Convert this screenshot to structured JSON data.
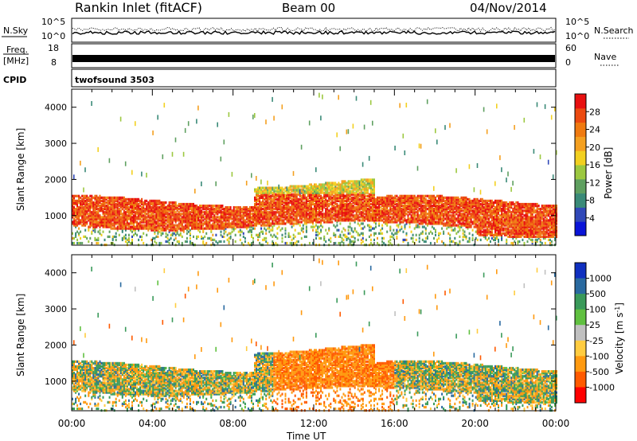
{
  "header": {
    "station": "Rankin Inlet (fitACF)",
    "beam": "Beam 00",
    "date": "04/Nov/2014"
  },
  "panels_top": {
    "nsky_label": "N.Sky",
    "nsky_top_tick": "10^5",
    "nsky_bottom_tick": "10^0",
    "nsearch_label": "N.Search",
    "nsearch_top_tick": "10^5",
    "nsearch_bottom_tick": "10^0",
    "freq_label": "Freq.",
    "freq_unit": "[MHz]",
    "freq_top_tick": "18",
    "freq_bottom_tick": "8",
    "nave_label": "Nave",
    "nave_top_tick": "60",
    "nave_bottom_tick": "0",
    "cpid_label": "CPID",
    "cpid_value": "twofsound 3503"
  },
  "colors": {
    "power_scale": [
      "#0a14d8",
      "#3048b8",
      "#3a8a78",
      "#5fa060",
      "#9cc840",
      "#f2d020",
      "#f4a020",
      "#f07a10",
      "#ec4a10",
      "#e81010"
    ],
    "velocity_scale": [
      "#ff0000",
      "#ff5a00",
      "#ff9a10",
      "#ffcc40",
      "#c0c0c0",
      "#60c040",
      "#3a9a5a",
      "#2a6aa0",
      "#1030c0"
    ]
  },
  "chart_data": [
    {
      "type": "line",
      "title": "N.Sky / N.Search",
      "x_range": [
        "00:00",
        "24:00"
      ],
      "ylabel": "N.Sky",
      "ylabel_right": "N.Search",
      "y_ticks": [
        "10^0",
        "10^5"
      ],
      "log_scale": true
    },
    {
      "type": "line",
      "ylabel": "Freq. [MHz]",
      "ylabel_right": "Nave",
      "y_ticks_left": [
        8,
        18
      ],
      "y_ticks_right": [
        0,
        60
      ],
      "cpid": "twofsound 3503"
    },
    {
      "type": "heatmap",
      "parameter": "Power",
      "colorbar_label": "Power [dB]",
      "colorbar_ticks": [
        "4",
        "8",
        "12",
        "16",
        "20",
        "24",
        "28"
      ],
      "colorbar_range": [
        0,
        32
      ],
      "ylabel": "Slant Range [km]",
      "y_ticks": [
        "1000",
        "2000",
        "3000",
        "4000"
      ],
      "ylim": [
        180,
        4500
      ],
      "x_ticks": [
        "00:00",
        "04:00",
        "08:00",
        "12:00",
        "16:00",
        "20:00",
        "00:00"
      ],
      "main_band_range_km": [
        700,
        1400
      ]
    },
    {
      "type": "heatmap",
      "parameter": "Velocity",
      "colorbar_label": "Velocity [m s-1]",
      "colorbar_label_base": "Velocity [m s",
      "colorbar_label_exp": "-1",
      "colorbar_label_end": "]",
      "colorbar_ticks": [
        "1000",
        "500",
        "100",
        "25",
        "-25",
        "-100",
        "-500",
        "-1000"
      ],
      "ylabel": "Slant Range [km]",
      "y_ticks": [
        "1000",
        "2000",
        "3000",
        "4000"
      ],
      "ylim": [
        180,
        4500
      ],
      "x_ticks": [
        "00:00",
        "04:00",
        "08:00",
        "12:00",
        "16:00",
        "20:00",
        "00:00"
      ],
      "xlabel": "Time UT"
    }
  ]
}
